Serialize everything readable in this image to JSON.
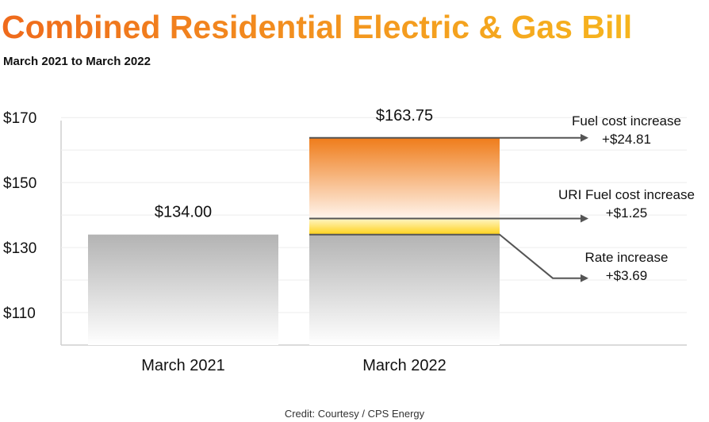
{
  "chart_data": {
    "type": "bar",
    "title": "Combined Residential Electric & Gas Bill",
    "subtitle": "March 2021 to March 2022",
    "categories": [
      "March 2021",
      "March 2022"
    ],
    "ylim": [
      100,
      172
    ],
    "yticks": [
      110,
      130,
      150,
      170
    ],
    "ytick_labels": [
      "$110",
      "$130",
      "$150",
      "$170"
    ],
    "totals": [
      134.0,
      163.75
    ],
    "total_labels": [
      "$134.00",
      "$163.75"
    ],
    "base_values": [
      134.0,
      134.0
    ],
    "stack": [
      {
        "name": "Rate increase",
        "value": 3.69,
        "value_label": "+$3.69",
        "color": "#ffd21a"
      },
      {
        "name": "URI Fuel cost increase",
        "value": 1.25,
        "value_label": "+$1.25",
        "color": "#ffe66b"
      },
      {
        "name": "Fuel cost increase",
        "value": 24.81,
        "value_label": "+$24.81",
        "color": "#ef7c1a"
      }
    ],
    "grid": true,
    "credit": "Credit: Courtesy / CPS Energy"
  }
}
